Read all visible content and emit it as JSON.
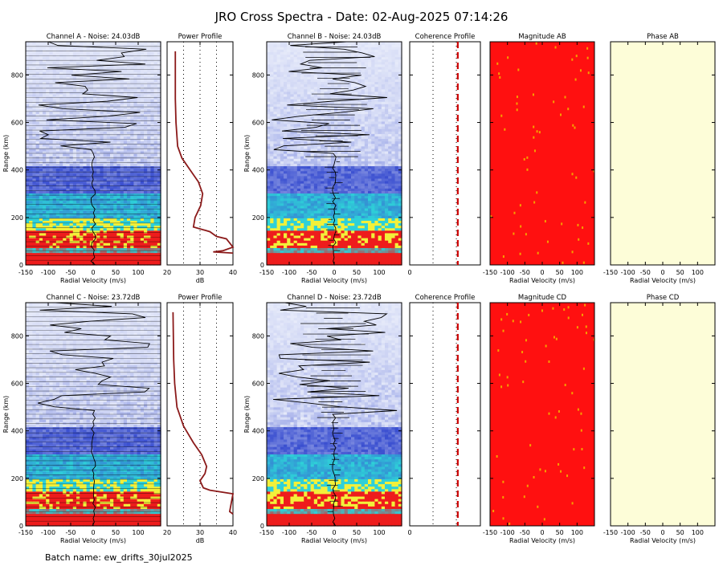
{
  "title": "JRO Cross Spectra - Date: 02-Aug-2025 07:14:26",
  "batch_label": "Batch name: ew_drifts_30jul2025",
  "colors": {
    "spectra_low": "#e8ecfa",
    "spectra_mid": "#3a4fd0",
    "spectra_cyan": "#2ed0d8",
    "spectra_yellow": "#f2f03a",
    "spectra_red": "#ee1c1c",
    "magnitude": "#ff1010",
    "phase": "#fdfdd8",
    "power_curve": "#8b1a1a",
    "coherence_line": "#cc0000"
  },
  "chart_data": [
    {
      "id": "channel-a",
      "type": "heatmap",
      "title": "Channel A - Noise: 24.03dB",
      "xlabel": "Radial Velocity (m/s)",
      "ylabel": "Range (km)",
      "xlim": [
        -150,
        150
      ],
      "ylim": [
        0,
        940
      ],
      "xticks": [
        "-150",
        "-100",
        "-50",
        "0",
        "50",
        "100"
      ],
      "yticks": [
        "0",
        "200",
        "400",
        "600",
        "800"
      ],
      "noise_db": 24.03
    },
    {
      "id": "power-a",
      "type": "line",
      "title": "Power Profile",
      "xlabel": "dB",
      "xlim": [
        20,
        40
      ],
      "xticks": [
        "20",
        "30",
        "40"
      ],
      "curve": [
        [
          22.5,
          900
        ],
        [
          22.5,
          700
        ],
        [
          22.7,
          600
        ],
        [
          23.2,
          500
        ],
        [
          24.5,
          450
        ],
        [
          27,
          400
        ],
        [
          29.5,
          350
        ],
        [
          30.8,
          300
        ],
        [
          30.2,
          250
        ],
        [
          28.5,
          200
        ],
        [
          28,
          160
        ],
        [
          33,
          140
        ],
        [
          35,
          120
        ],
        [
          38,
          110
        ],
        [
          40,
          75
        ],
        [
          37,
          60
        ],
        [
          34,
          55
        ],
        [
          40,
          50
        ]
      ]
    },
    {
      "id": "channel-b",
      "type": "heatmap",
      "title": "Channel B - Noise: 24.03dB",
      "xlabel": "Radial Velocity (m/s)",
      "ylabel": "Range (km)",
      "xlim": [
        -150,
        150
      ],
      "ylim": [
        0,
        940
      ],
      "xticks": [
        "-150",
        "-100",
        "-50",
        "0",
        "50",
        "100"
      ],
      "yticks": [
        "0",
        "200",
        "400",
        "600",
        "800"
      ],
      "noise_db": 24.03
    },
    {
      "id": "coherence-ab",
      "type": "line",
      "title": "Coherence Profile",
      "xlim": [
        0,
        1
      ],
      "xticks": [
        "0"
      ]
    },
    {
      "id": "magnitude-ab",
      "type": "heatmap",
      "title": "Magnitude AB",
      "xlabel": "Radial Velocity (m/s)",
      "xlim": [
        -150,
        150
      ],
      "xticks": [
        "-150",
        "-100",
        "-50",
        "0",
        "50",
        "100"
      ]
    },
    {
      "id": "phase-ab",
      "type": "heatmap",
      "title": "Phase AB",
      "xlabel": "Radial Velocity (m/s)",
      "xlim": [
        -150,
        150
      ],
      "xticks": [
        "-150",
        "-100",
        "-50",
        "0",
        "50",
        "100"
      ]
    },
    {
      "id": "channel-c",
      "type": "heatmap",
      "title": "Channel C - Noise: 23.72dB",
      "xlabel": "Radial Velocity (m/s)",
      "ylabel": "Range (km)",
      "xlim": [
        -150,
        150
      ],
      "ylim": [
        0,
        940
      ],
      "xticks": [
        "-150",
        "-100",
        "-50",
        "0",
        "50",
        "100"
      ],
      "yticks": [
        "0",
        "200",
        "400",
        "600",
        "800"
      ],
      "noise_db": 23.72
    },
    {
      "id": "power-c",
      "type": "line",
      "title": "Power Profile",
      "xlabel": "dB",
      "xlim": [
        20,
        40
      ],
      "xticks": [
        "20",
        "30",
        "40"
      ],
      "curve": [
        [
          21.8,
          900
        ],
        [
          22,
          700
        ],
        [
          22.3,
          600
        ],
        [
          23,
          500
        ],
        [
          25,
          420
        ],
        [
          28,
          350
        ],
        [
          30.5,
          300
        ],
        [
          32,
          250
        ],
        [
          31.5,
          220
        ],
        [
          30,
          190
        ],
        [
          31,
          160
        ],
        [
          33,
          150
        ],
        [
          40,
          135
        ],
        [
          39,
          60
        ],
        [
          40,
          50
        ]
      ]
    },
    {
      "id": "channel-d",
      "type": "heatmap",
      "title": "Channel D - Noise: 23.72dB",
      "xlabel": "Radial Velocity (m/s)",
      "ylabel": "Range (km)",
      "xlim": [
        -150,
        150
      ],
      "ylim": [
        0,
        940
      ],
      "xticks": [
        "-150",
        "-100",
        "-50",
        "0",
        "50",
        "100"
      ],
      "yticks": [
        "0",
        "200",
        "400",
        "600",
        "800"
      ],
      "noise_db": 23.72
    },
    {
      "id": "coherence-cd",
      "type": "line",
      "title": "Coherence Profile",
      "xlim": [
        0,
        1
      ],
      "xticks": [
        "0"
      ]
    },
    {
      "id": "magnitude-cd",
      "type": "heatmap",
      "title": "Magnitude CD",
      "xlabel": "Radial Velocity (m/s)",
      "xlim": [
        -150,
        150
      ],
      "xticks": [
        "-150",
        "-100",
        "-50",
        "0",
        "50",
        "100"
      ]
    },
    {
      "id": "phase-cd",
      "type": "heatmap",
      "title": "Phase CD",
      "xlabel": "Radial Velocity (m/s)",
      "xlim": [
        -150,
        150
      ],
      "xticks": [
        "-150",
        "-100",
        "-50",
        "0",
        "50",
        "100"
      ]
    }
  ]
}
